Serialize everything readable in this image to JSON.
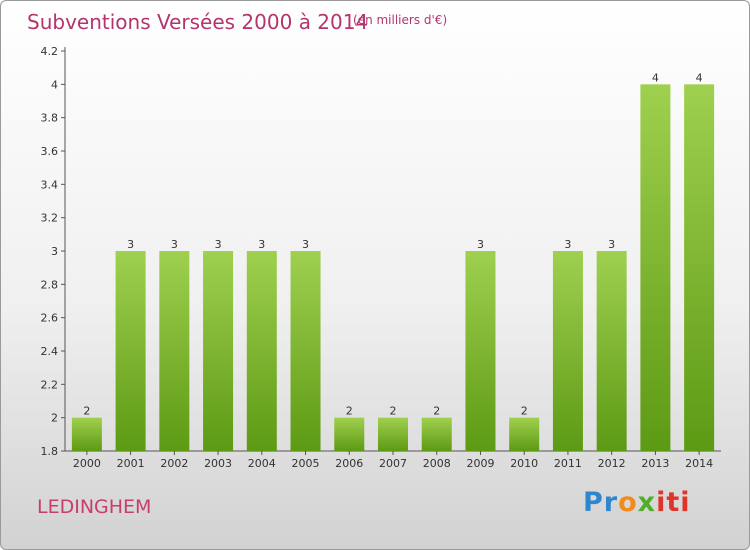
{
  "header": {
    "title": "Subventions Versées 2000 à 2014",
    "unit": "(en milliers d'€)"
  },
  "footer": {
    "town": "LEDINGHEM",
    "logo": "Proxiti"
  },
  "colors": {
    "bar_top": "#9fd04f",
    "bar_bottom": "#5d9a14",
    "title": "#b5346e"
  },
  "chart_data": {
    "type": "bar",
    "title": "Subventions Versées 2000 à 2014",
    "subtitle": "(en milliers d'€)",
    "xlabel": "",
    "ylabel": "",
    "categories": [
      "2000",
      "2001",
      "2002",
      "2003",
      "2004",
      "2005",
      "2006",
      "2007",
      "2008",
      "2009",
      "2010",
      "2011",
      "2012",
      "2013",
      "2014"
    ],
    "values": [
      2,
      3,
      3,
      3,
      3,
      3,
      2,
      2,
      2,
      3,
      2,
      3,
      3,
      4,
      4
    ],
    "value_labels": [
      "2",
      "3",
      "3",
      "3",
      "3",
      "3",
      "2",
      "2",
      "2",
      "3",
      "2",
      "3",
      "3",
      "4",
      "4"
    ],
    "ylim": [
      1.8,
      4.2
    ],
    "yticks": [
      1.8,
      2,
      2.2,
      2.4,
      2.6,
      2.8,
      3,
      3.2,
      3.4,
      3.6,
      3.8,
      4,
      4.2
    ],
    "ytick_labels": [
      "1.8",
      "2",
      "2.2",
      "2.4",
      "2.6",
      "2.8",
      "3",
      "3.2",
      "3.4",
      "3.6",
      "3.8",
      "4",
      "4.2"
    ],
    "grid": false,
    "legend": "none"
  }
}
